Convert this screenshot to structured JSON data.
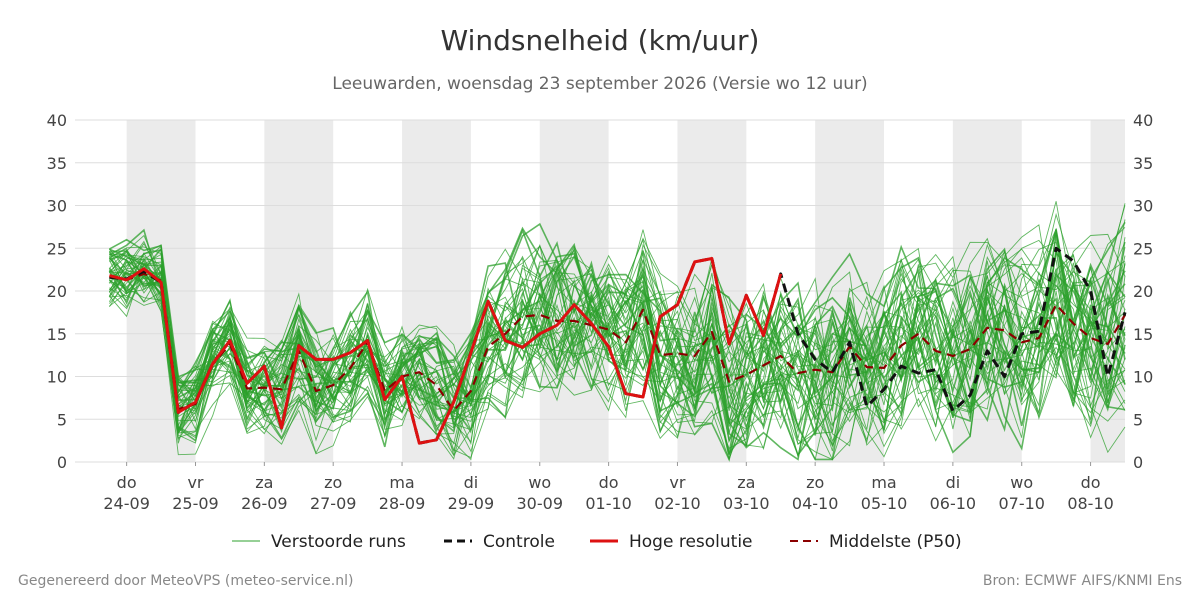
{
  "chart_data": {
    "type": "line",
    "title": "Windsnelheid (km/uur)",
    "subtitle": "Leeuwarden, woensdag 23 september 2026 (Versie wo 12 uur)",
    "ylim": [
      0,
      40
    ],
    "yticks": [
      0,
      5,
      10,
      15,
      20,
      25,
      30,
      35,
      40
    ],
    "xlim": [
      -0.75,
      14.5
    ],
    "x_tick_positions": [
      0,
      1,
      2,
      3,
      4,
      5,
      6,
      7,
      8,
      9,
      10,
      11,
      12,
      13,
      14
    ],
    "x_tick_labels": [
      {
        "day": "do",
        "date": "24-09"
      },
      {
        "day": "vr",
        "date": "25-09"
      },
      {
        "day": "za",
        "date": "26-09"
      },
      {
        "day": "zo",
        "date": "27-09"
      },
      {
        "day": "ma",
        "date": "28-09"
      },
      {
        "day": "di",
        "date": "29-09"
      },
      {
        "day": "wo",
        "date": "30-09"
      },
      {
        "day": "do",
        "date": "01-10"
      },
      {
        "day": "vr",
        "date": "02-10"
      },
      {
        "day": "za",
        "date": "03-10"
      },
      {
        "day": "zo",
        "date": "04-10"
      },
      {
        "day": "ma",
        "date": "05-10"
      },
      {
        "day": "di",
        "date": "06-10"
      },
      {
        "day": "wo",
        "date": "07-10"
      },
      {
        "day": "do",
        "date": "08-10"
      }
    ],
    "shaded_day_bands": [
      [
        0,
        1
      ],
      [
        2,
        3
      ],
      [
        4,
        5
      ],
      [
        6,
        7
      ],
      [
        8,
        9
      ],
      [
        10,
        11
      ],
      [
        12,
        13
      ],
      [
        14,
        14.5
      ]
    ],
    "grid": true,
    "legend_position": "bottom",
    "legend": [
      {
        "key": "runs",
        "label": "Verstoorde runs"
      },
      {
        "key": "control",
        "label": "Controle"
      },
      {
        "key": "hires",
        "label": "Hoge resolutie"
      },
      {
        "key": "median",
        "label": "Middelste (P50)"
      }
    ],
    "colors": {
      "runs": "#2ca02c",
      "control": "#111111",
      "hires": "#dd1111",
      "median": "#8b0000",
      "band": "#ebebeb",
      "grid": "#dddddd"
    },
    "ensemble": {
      "member_count": 50,
      "x_start": -0.25,
      "x_step": 0.25,
      "note_range": "members spread roughly between the plotted envelope"
    },
    "series": [
      {
        "name": "Hoge resolutie",
        "key": "hires",
        "x": [
          -0.25,
          -0.1,
          0.0,
          0.1,
          0.25,
          0.5,
          0.75,
          1.0,
          1.25,
          1.5,
          1.75,
          2.0,
          2.25,
          2.5,
          2.75,
          3.0,
          3.25,
          3.5,
          3.75,
          4.0,
          4.25,
          4.5,
          4.75,
          5.0,
          5.25,
          5.5,
          5.75,
          6.0,
          6.25,
          6.5,
          6.75,
          7.0,
          7.25,
          7.5,
          7.75,
          8.0,
          8.25,
          8.5,
          8.75,
          9.0,
          9.25,
          9.5
        ],
        "y": [
          21.8,
          21.5,
          21.3,
          21.8,
          22.6,
          21.0,
          5.8,
          7.0,
          11.5,
          14.2,
          9.2,
          11.2,
          4.0,
          13.6,
          12.0,
          12.0,
          12.8,
          14.2,
          7.3,
          10.0,
          2.2,
          2.6,
          7.0,
          12.8,
          18.8,
          14.2,
          13.4,
          15.0,
          16.0,
          18.4,
          16.2,
          13.5,
          8.0,
          7.6,
          17.0,
          18.4,
          23.4,
          23.8,
          13.8,
          19.5,
          14.8,
          22.0
        ]
      },
      {
        "name": "Controle",
        "key": "control",
        "x": [
          -0.25,
          0.0,
          0.25,
          0.5,
          0.75,
          1.0,
          1.25,
          1.5,
          1.75,
          2.0,
          2.25,
          2.5,
          2.75,
          3.0,
          3.25,
          3.5,
          3.75,
          4.0,
          4.25,
          4.5,
          4.75,
          5.0,
          5.25,
          5.5,
          5.75,
          6.0,
          6.25,
          6.5,
          6.75,
          7.0,
          7.25,
          7.5,
          7.75,
          8.0,
          8.25,
          8.5,
          8.75,
          9.0,
          9.25,
          9.5,
          9.75,
          10.0,
          10.25,
          10.5,
          10.75,
          11.0,
          11.25,
          11.5,
          11.75,
          12.0,
          12.25,
          12.5,
          12.75,
          13.0,
          13.25,
          13.5,
          13.75,
          14.0,
          14.25,
          14.5
        ],
        "y": [
          21.6,
          21.4,
          22.3,
          21.0,
          5.8,
          7.0,
          11.5,
          14.2,
          9.2,
          11.2,
          4.0,
          13.6,
          12.0,
          12.0,
          12.8,
          14.2,
          7.3,
          10.0,
          2.2,
          2.6,
          7.0,
          12.8,
          18.8,
          14.2,
          13.4,
          15.0,
          16.0,
          18.4,
          16.2,
          13.5,
          8.0,
          7.6,
          17.0,
          18.4,
          23.4,
          23.8,
          13.8,
          19.5,
          14.8,
          22.0,
          15.0,
          12.0,
          10.5,
          14.0,
          6.5,
          8.5,
          11.2,
          10.4,
          10.8,
          6.0,
          7.8,
          13.0,
          10.0,
          15.0,
          15.3,
          25.0,
          23.5,
          20.0,
          10.0,
          17.5
        ]
      },
      {
        "name": "Middelste (P50)",
        "key": "median",
        "x": [
          -0.25,
          0.0,
          0.25,
          0.5,
          0.75,
          1.0,
          1.25,
          1.5,
          1.75,
          2.0,
          2.25,
          2.5,
          2.75,
          3.0,
          3.25,
          3.5,
          3.75,
          4.0,
          4.25,
          4.5,
          4.75,
          5.0,
          5.25,
          5.5,
          5.75,
          6.0,
          6.25,
          6.5,
          6.75,
          7.0,
          7.25,
          7.5,
          7.75,
          8.0,
          8.25,
          8.5,
          8.75,
          9.0,
          9.25,
          9.5,
          9.75,
          10.0,
          10.25,
          10.5,
          10.75,
          11.0,
          11.25,
          11.5,
          11.75,
          12.0,
          12.25,
          12.5,
          12.75,
          13.0,
          13.25,
          13.5,
          13.75,
          14.0,
          14.25,
          14.5
        ],
        "y": [
          21.6,
          21.3,
          22.0,
          21.2,
          6.2,
          6.8,
          11.4,
          13.8,
          8.6,
          8.7,
          8.5,
          13.0,
          8.3,
          9.0,
          11.0,
          14.0,
          8.3,
          10.0,
          10.5,
          9.0,
          6.0,
          8.3,
          13.5,
          15.0,
          17.0,
          17.2,
          16.5,
          16.5,
          16.0,
          15.5,
          14.0,
          17.8,
          12.5,
          12.7,
          12.4,
          15.2,
          9.4,
          10.2,
          11.3,
          12.4,
          10.4,
          10.8,
          10.5,
          13.5,
          11.1,
          11.0,
          13.6,
          15.0,
          13.0,
          12.4,
          13.2,
          15.7,
          15.4,
          14.0,
          14.5,
          18.4,
          16.2,
          14.5,
          13.8,
          17.2
        ]
      }
    ]
  },
  "footer": {
    "left": "Gegenereerd door MeteoVPS (meteo-service.nl)",
    "right": "Bron: ECMWF AIFS/KNMI Ens"
  }
}
